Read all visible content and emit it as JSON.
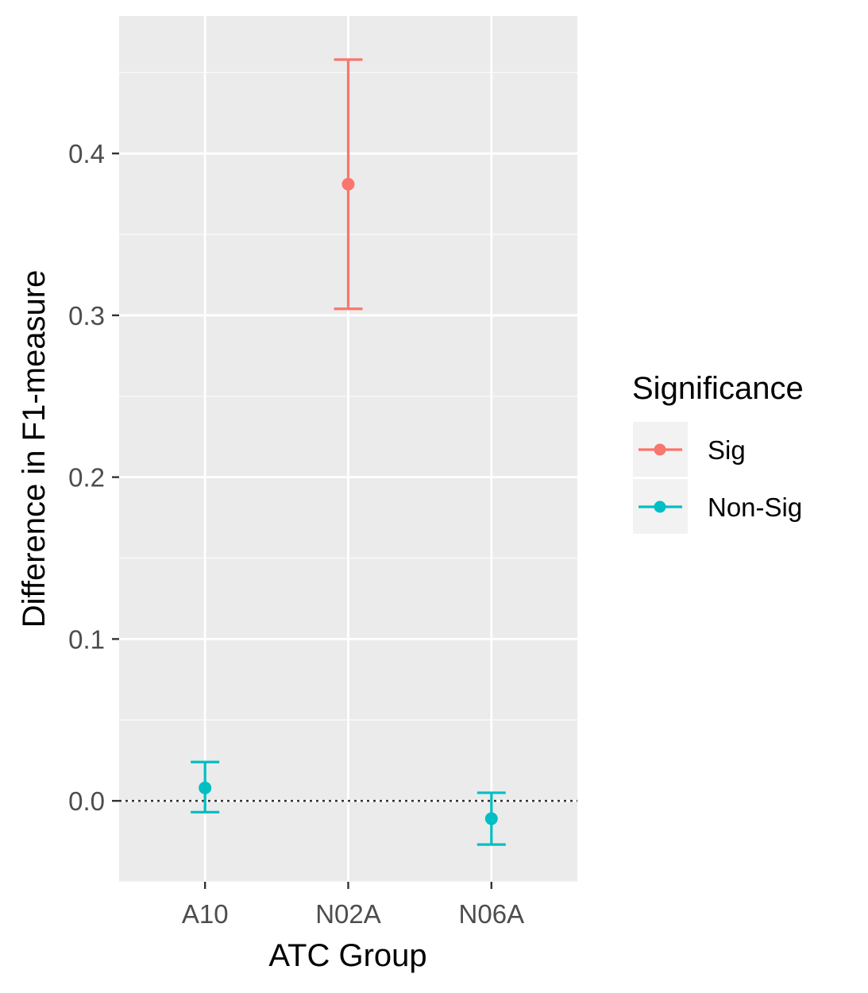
{
  "chart_data": {
    "type": "scatter",
    "title": "",
    "xlabel": "ATC Group",
    "ylabel": "Difference in F1-measure",
    "categories": [
      "A10",
      "N02A",
      "N06A"
    ],
    "ylim": [
      -0.05,
      0.485
    ],
    "yticks": [
      0.0,
      0.1,
      0.2,
      0.3,
      0.4
    ],
    "ytick_labels": [
      "0.0",
      "0.1",
      "0.2",
      "0.3",
      "0.4"
    ],
    "grid": true,
    "reference_line": {
      "y": 0.0,
      "style": "dotted"
    },
    "points": [
      {
        "category": "A10",
        "value": 0.008,
        "lower": -0.007,
        "upper": 0.024,
        "group": "Non-Sig"
      },
      {
        "category": "N02A",
        "value": 0.381,
        "lower": 0.304,
        "upper": 0.458,
        "group": "Sig"
      },
      {
        "category": "N06A",
        "value": -0.011,
        "lower": -0.027,
        "upper": 0.005,
        "group": "Non-Sig"
      }
    ],
    "legend": {
      "title": "Significance",
      "placement": "right",
      "entries": [
        {
          "label": "Sig",
          "color": "#F8766D"
        },
        {
          "label": "Non-Sig",
          "color": "#00BFC4"
        }
      ]
    },
    "colors": {
      "Sig": "#F8766D",
      "Non-Sig": "#00BFC4",
      "panel": "#EBEBEB",
      "grid": "#FFFFFF"
    }
  }
}
